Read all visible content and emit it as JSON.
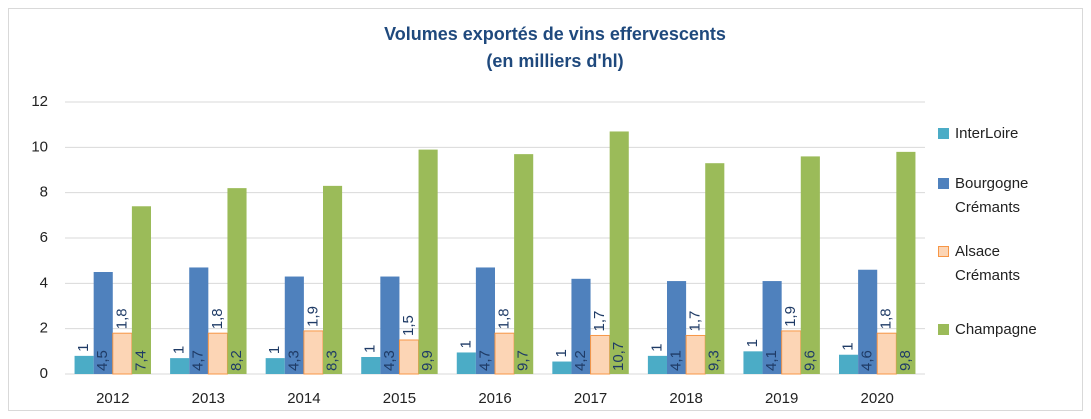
{
  "chart_data": {
    "type": "bar",
    "title": "Volumes exportés de vins effervescents",
    "subtitle": "(en milliers d'hl)",
    "categories": [
      "2012",
      "2013",
      "2014",
      "2015",
      "2016",
      "2017",
      "2018",
      "2019",
      "2020"
    ],
    "series": [
      {
        "name": "InterLoire",
        "color": "#4bacc6",
        "values": [
          0.8,
          0.7,
          0.7,
          0.75,
          0.95,
          0.55,
          0.8,
          1.0,
          0.85
        ],
        "value_labels": [
          "1",
          "1",
          "1",
          "1",
          "1",
          "1",
          "1",
          "1",
          "1"
        ]
      },
      {
        "name": "Bourgogne Crémants",
        "color": "#4f81bd",
        "values": [
          4.5,
          4.7,
          4.3,
          4.3,
          4.7,
          4.2,
          4.1,
          4.1,
          4.6
        ],
        "value_labels": [
          "4,5",
          "4,7",
          "4,3",
          "4,3",
          "4,7",
          "4,2",
          "4,1",
          "4,1",
          "4,6"
        ]
      },
      {
        "name": "Alsace Crémants",
        "color": "#fcd5b5",
        "edge_color": "#f79646",
        "values": [
          1.8,
          1.8,
          1.9,
          1.5,
          1.8,
          1.7,
          1.7,
          1.9,
          1.8
        ],
        "value_labels": [
          "1,8",
          "1,8",
          "1,9",
          "1,5",
          "1,8",
          "1,7",
          "1,7",
          "1,9",
          "1,8"
        ]
      },
      {
        "name": "Champagne",
        "color": "#9bbb59",
        "values": [
          7.4,
          8.2,
          8.3,
          9.9,
          9.7,
          10.7,
          9.3,
          9.6,
          9.8
        ],
        "value_labels": [
          "7,4",
          "8,2",
          "8,3",
          "9,9",
          "9,7",
          "10,7",
          "9,3",
          "9,6",
          "9,8"
        ]
      }
    ],
    "ylim": [
      0,
      12
    ],
    "yticks": [
      0,
      2,
      4,
      6,
      8,
      10,
      12
    ],
    "grid": true,
    "legend": "right"
  }
}
